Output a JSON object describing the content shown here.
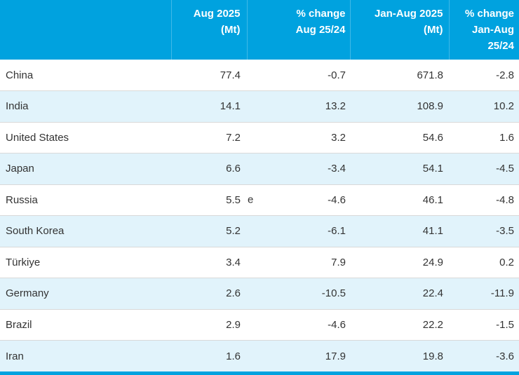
{
  "theme": {
    "header_bg": "#00a2df",
    "header_text": "#ffffff",
    "stripe_bg": "#e1f3fb",
    "row_bg": "#ffffff",
    "row_divider": "#d9d9d9",
    "body_text": "#333333"
  },
  "table": {
    "columns": [
      {
        "label": ""
      },
      {
        "label": "Aug 2025\n(Mt)"
      },
      {
        "label": "% change\nAug 25/24"
      },
      {
        "label": "Jan-Aug 2025\n(Mt)"
      },
      {
        "label": "% change\nJan-Aug\n25/24"
      }
    ],
    "rows": [
      {
        "country": "China",
        "aug": "77.4",
        "note": "",
        "chg_aug": "-0.7",
        "jan_aug": "671.8",
        "chg_jan_aug": "-2.8"
      },
      {
        "country": "India",
        "aug": "14.1",
        "note": "",
        "chg_aug": "13.2",
        "jan_aug": "108.9",
        "chg_jan_aug": "10.2"
      },
      {
        "country": "United States",
        "aug": "7.2",
        "note": "",
        "chg_aug": "3.2",
        "jan_aug": "54.6",
        "chg_jan_aug": "1.6"
      },
      {
        "country": "Japan",
        "aug": "6.6",
        "note": "",
        "chg_aug": "-3.4",
        "jan_aug": "54.1",
        "chg_jan_aug": "-4.5"
      },
      {
        "country": "Russia",
        "aug": "5.5",
        "note": "e",
        "chg_aug": "-4.6",
        "jan_aug": "46.1",
        "chg_jan_aug": "-4.8"
      },
      {
        "country": "South Korea",
        "aug": "5.2",
        "note": "",
        "chg_aug": "-6.1",
        "jan_aug": "41.1",
        "chg_jan_aug": "-3.5"
      },
      {
        "country": "Türkiye",
        "aug": "3.4",
        "note": "",
        "chg_aug": "7.9",
        "jan_aug": "24.9",
        "chg_jan_aug": "0.2"
      },
      {
        "country": "Germany",
        "aug": "2.6",
        "note": "",
        "chg_aug": "-10.5",
        "jan_aug": "22.4",
        "chg_jan_aug": "-11.9"
      },
      {
        "country": "Brazil",
        "aug": "2.9",
        "note": "",
        "chg_aug": "-4.6",
        "jan_aug": "22.2",
        "chg_jan_aug": "-1.5"
      },
      {
        "country": "Iran",
        "aug": "1.6",
        "note": "",
        "chg_aug": "17.9",
        "jan_aug": "19.8",
        "chg_jan_aug": "-3.6"
      }
    ]
  },
  "chart_data": {
    "type": "table",
    "columns": [
      "",
      "Aug 2025 (Mt)",
      "% change Aug 25/24",
      "Jan-Aug 2025 (Mt)",
      "% change Jan-Aug 25/24"
    ],
    "rows": [
      [
        "China",
        77.4,
        -0.7,
        671.8,
        -2.8
      ],
      [
        "India",
        14.1,
        13.2,
        108.9,
        10.2
      ],
      [
        "United States",
        7.2,
        3.2,
        54.6,
        1.6
      ],
      [
        "Japan",
        6.6,
        -3.4,
        54.1,
        -4.5
      ],
      [
        "Russia",
        5.5,
        -4.6,
        46.1,
        -4.8
      ],
      [
        "South Korea",
        5.2,
        -6.1,
        41.1,
        -3.5
      ],
      [
        "Türkiye",
        3.4,
        7.9,
        24.9,
        0.2
      ],
      [
        "Germany",
        2.6,
        -10.5,
        22.4,
        -11.9
      ],
      [
        "Brazil",
        2.9,
        -4.6,
        22.2,
        -1.5
      ],
      [
        "Iran",
        1.6,
        17.9,
        19.8,
        -3.6
      ]
    ],
    "annotations": [
      "Russia Aug 2025 value is flagged with marker 'e'"
    ]
  }
}
